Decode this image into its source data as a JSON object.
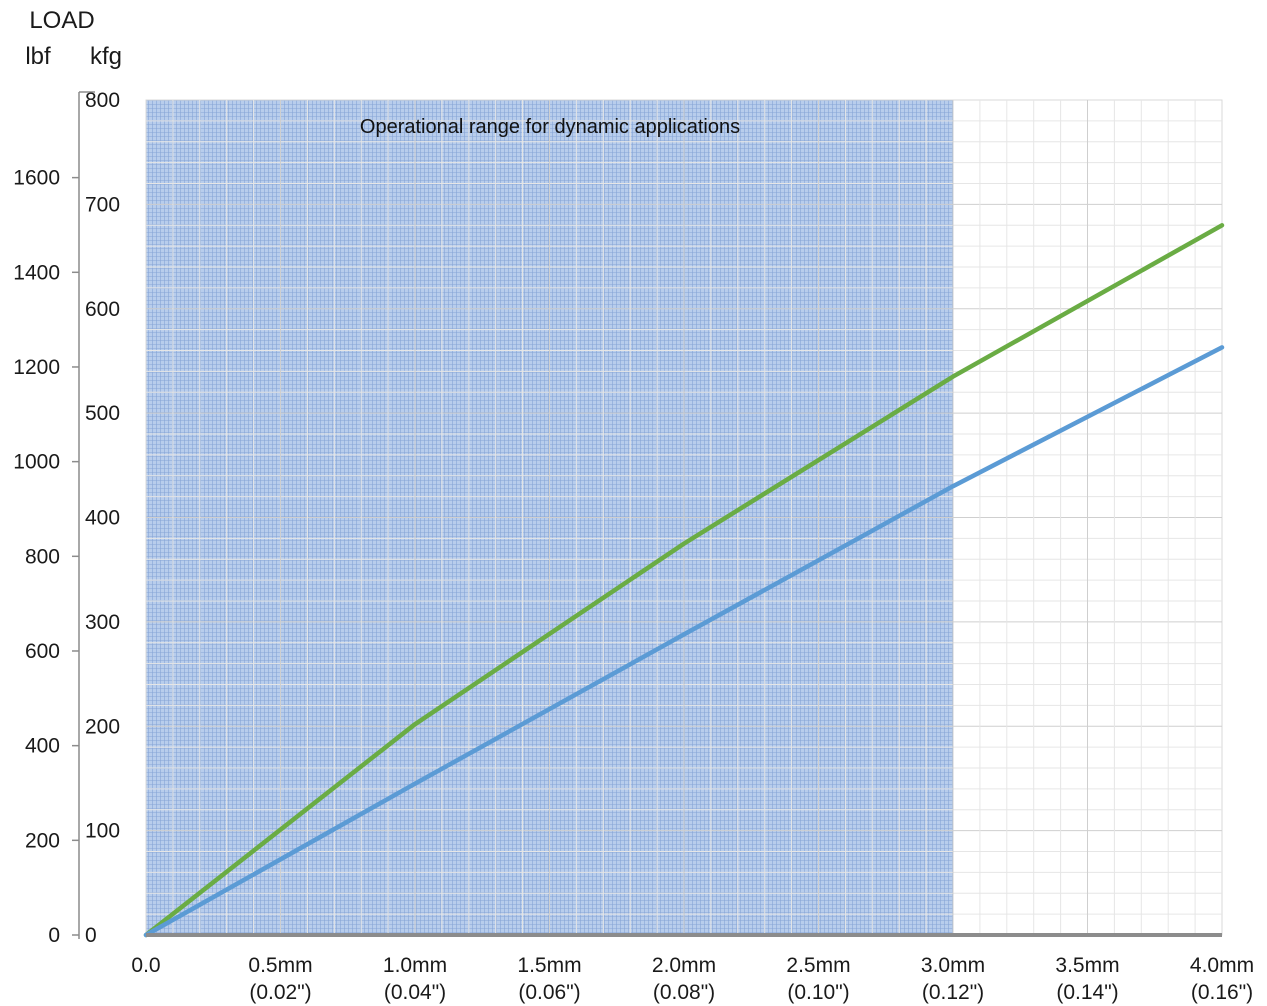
{
  "chart_data": {
    "type": "line",
    "ylabel": "LOAD",
    "y_unit_left": "lbf",
    "y_unit_right": "kfg",
    "x_ticks": [
      {
        "value": 0.0,
        "label": "0.0",
        "sublabel": ""
      },
      {
        "value": 0.5,
        "label": "0.5mm",
        "sublabel": "(0.02\")"
      },
      {
        "value": 1.0,
        "label": "1.0mm",
        "sublabel": "(0.04\")"
      },
      {
        "value": 1.5,
        "label": "1.5mm",
        "sublabel": "(0.06\")"
      },
      {
        "value": 2.0,
        "label": "2.0mm",
        "sublabel": "(0.08\")"
      },
      {
        "value": 2.5,
        "label": "2.5mm",
        "sublabel": "(0.10\")"
      },
      {
        "value": 3.0,
        "label": "3.0mm",
        "sublabel": "(0.12\")"
      },
      {
        "value": 3.5,
        "label": "3.5mm",
        "sublabel": "(0.14\")"
      },
      {
        "value": 4.0,
        "label": "4.0mm",
        "sublabel": "(0.16\")"
      }
    ],
    "xlim": [
      0,
      4
    ],
    "y_kgf_ticks": [
      0,
      100,
      200,
      300,
      400,
      500,
      600,
      700,
      800
    ],
    "y_kgf_lim": [
      0,
      800
    ],
    "y_lbf_ticks": [
      0,
      200,
      400,
      600,
      800,
      1000,
      1200,
      1400,
      1600
    ],
    "y_lbf_lim": [
      0,
      1764
    ],
    "shaded_region": {
      "x_start": 0,
      "x_end": 3.0,
      "label": "Operational range for dynamic applications",
      "color": "#a9c2e6"
    },
    "grid": true,
    "series": [
      {
        "name": "",
        "color": "#6aac44",
        "x": [
          0,
          1.0,
          2.0,
          3.0,
          4.0
        ],
        "y": [
          0,
          202,
          375,
          535,
          680
        ]
      },
      {
        "name": "",
        "color": "#5b9bd5",
        "x": [
          0,
          1.0,
          2.0,
          3.0,
          4.0
        ],
        "y": [
          0,
          145,
          288,
          430,
          563
        ]
      }
    ]
  }
}
